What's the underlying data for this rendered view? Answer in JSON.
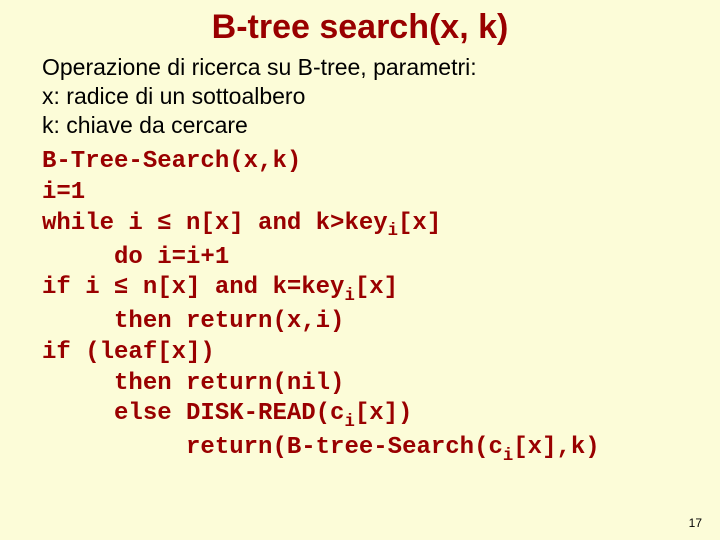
{
  "colors": {
    "background": "#fcfcd8",
    "accent": "#990000",
    "body_text": "#000000"
  },
  "typography": {
    "title_font": "Comic Sans MS",
    "title_size_pt": 26,
    "body_font": "Comic Sans MS",
    "body_size_pt": 18,
    "code_font": "Courier New",
    "code_size_pt": 18,
    "code_weight": "bold"
  },
  "title": "B-tree search(x, k)",
  "desc_lines": [
    "Operazione di ricerca su B-tree, parametri:",
    "x: radice di un sottoalbero",
    "k: chiave da cercare"
  ],
  "code_lines": [
    {
      "indent": 0,
      "tokens": [
        "B-Tree-Search(x,k)"
      ]
    },
    {
      "indent": 0,
      "tokens": [
        "i=1"
      ]
    },
    {
      "indent": 0,
      "tokens": [
        "while i ≤ n[x] and k>key",
        {
          "sub": "i"
        },
        "[x]"
      ]
    },
    {
      "indent": 1,
      "tokens": [
        "do i=i+1"
      ]
    },
    {
      "indent": 0,
      "tokens": [
        "if i ≤ n[x] and k=key",
        {
          "sub": "i"
        },
        "[x]"
      ]
    },
    {
      "indent": 1,
      "tokens": [
        "then return(x,i)"
      ]
    },
    {
      "indent": 0,
      "tokens": [
        "if (leaf[x])"
      ]
    },
    {
      "indent": 1,
      "tokens": [
        "then return(nil)"
      ]
    },
    {
      "indent": 1,
      "tokens": [
        "else DISK-READ(c",
        {
          "sub": "i"
        },
        "[x])"
      ]
    },
    {
      "indent": 2,
      "tokens": [
        "return(B-tree-Search(c",
        {
          "sub": "i"
        },
        "[x],k)"
      ]
    }
  ],
  "indent_unit": "     ",
  "page_number": "17"
}
